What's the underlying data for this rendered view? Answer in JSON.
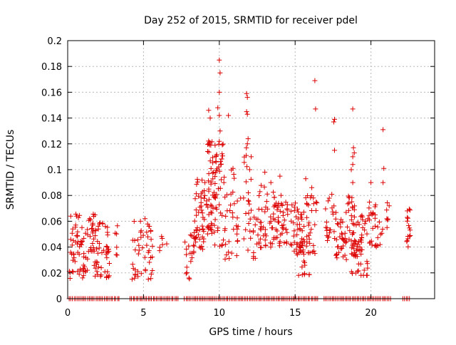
{
  "chart_data": {
    "type": "scatter",
    "title": "Day 252 of 2015, SRMTID for receiver pdel",
    "xlabel": "GPS time / hours",
    "ylabel": "SRMTID / TECUs",
    "xlim": [
      0,
      24.2
    ],
    "ylim": [
      0,
      0.2
    ],
    "grid": true,
    "marker": "+",
    "xticks": [
      0,
      5,
      10,
      15,
      20
    ],
    "yticks": [
      0,
      0.02,
      0.04,
      0.06,
      0.08,
      0.1,
      0.12,
      0.14,
      0.16,
      0.18,
      0.2
    ],
    "xtick_labels": [
      "0",
      "5",
      "10",
      "15",
      "20"
    ],
    "ytick_labels": [
      "0",
      "0.02",
      "0.04",
      "0.06",
      "0.08",
      "0.1",
      "0.12",
      "0.14",
      "0.16",
      "0.18",
      "0.2"
    ],
    "colors": {
      "series": "#dd0000",
      "grid": "#b8b8b8",
      "axes": "#000000"
    },
    "series": [
      {
        "name": "SRMTID",
        "clusters": [
          {
            "x": [
              0.1,
              2.4
            ],
            "y": [
              0.015,
              0.066
            ],
            "n": 110
          },
          {
            "x": 2.6,
            "y": [
              0.015,
              0.058
            ],
            "n": 20
          },
          {
            "x": [
              3.1,
              3.3
            ],
            "y": [
              0.03,
              0.057
            ],
            "n": 6
          },
          {
            "x": [
              4.2,
              5.6
            ],
            "y": [
              0.015,
              0.06
            ],
            "n": 45
          },
          {
            "x": [
              6.0,
              6.6
            ],
            "y": [
              0.035,
              0.055
            ],
            "n": 6
          },
          {
            "x": [
              7.7,
              8.2
            ],
            "y": [
              0.015,
              0.05
            ],
            "n": 14
          },
          {
            "x": [
              8.3,
              9.2
            ],
            "y": [
              0.035,
              0.095
            ],
            "n": 55
          },
          {
            "x": [
              9.2,
              9.6
            ],
            "y": [
              0.05,
              0.125
            ],
            "n": 40
          },
          {
            "x": [
              9.6,
              10.3
            ],
            "y": [
              0.04,
              0.12
            ],
            "n": 45
          },
          {
            "x": [
              10.3,
              11.0
            ],
            "y": [
              0.03,
              0.1
            ],
            "n": 25
          },
          {
            "x": [
              11.0,
              11.5
            ],
            "y": [
              0.03,
              0.08
            ],
            "n": 10
          },
          {
            "x": [
              11.6,
              12.1
            ],
            "y": [
              0.035,
              0.125
            ],
            "n": 22
          },
          {
            "x": [
              12.2,
              13.0
            ],
            "y": [
              0.03,
              0.09
            ],
            "n": 30
          },
          {
            "x": [
              13.0,
              14.2
            ],
            "y": [
              0.04,
              0.085
            ],
            "n": 55
          },
          {
            "x": [
              14.2,
              15.6
            ],
            "y": [
              0.035,
              0.075
            ],
            "n": 60
          },
          {
            "x": [
              15.1,
              16.0
            ],
            "y": [
              0.018,
              0.045
            ],
            "n": 20
          },
          {
            "x": [
              15.6,
              16.5
            ],
            "y": [
              0.035,
              0.08
            ],
            "n": 30
          },
          {
            "x": [
              17.0,
              17.6
            ],
            "y": [
              0.045,
              0.085
            ],
            "n": 20
          },
          {
            "x": [
              17.6,
              18.4
            ],
            "y": [
              0.03,
              0.075
            ],
            "n": 35
          },
          {
            "x": [
              18.4,
              19.0
            ],
            "y": [
              0.04,
              0.08
            ],
            "n": 25
          },
          {
            "x": [
              18.7,
              19.8
            ],
            "y": [
              0.018,
              0.065
            ],
            "n": 60
          },
          {
            "x": [
              19.7,
              20.8
            ],
            "y": [
              0.04,
              0.075
            ],
            "n": 30
          },
          {
            "x": [
              20.9,
              21.2
            ],
            "y": [
              0.055,
              0.075
            ],
            "n": 6
          },
          {
            "x": [
              22.3,
              22.6
            ],
            "y": [
              0.04,
              0.072
            ],
            "n": 15
          }
        ],
        "highlights": [
          [
            0.2,
            0.064
          ],
          [
            0.15,
            0.02
          ],
          [
            1.8,
            0.065
          ],
          [
            2.3,
            0.058
          ],
          [
            4.8,
            0.06
          ],
          [
            5.1,
            0.062
          ],
          [
            8.0,
            0.016
          ],
          [
            9.3,
            0.146
          ],
          [
            9.4,
            0.14
          ],
          [
            9.3,
            0.12
          ],
          [
            9.6,
            0.098
          ],
          [
            10.0,
            0.185
          ],
          [
            10.05,
            0.175
          ],
          [
            10.0,
            0.16
          ],
          [
            9.9,
            0.148
          ],
          [
            10.0,
            0.142
          ],
          [
            10.05,
            0.13
          ],
          [
            10.0,
            0.122
          ],
          [
            10.1,
            0.104
          ],
          [
            10.6,
            0.142
          ],
          [
            10.3,
            0.09
          ],
          [
            11.8,
            0.159
          ],
          [
            11.85,
            0.156
          ],
          [
            11.8,
            0.145
          ],
          [
            11.85,
            0.143
          ],
          [
            11.9,
            0.124
          ],
          [
            11.85,
            0.12
          ],
          [
            12.0,
            0.1
          ],
          [
            12.1,
            0.11
          ],
          [
            13.0,
            0.098
          ],
          [
            13.4,
            0.09
          ],
          [
            14.0,
            0.095
          ],
          [
            15.7,
            0.093
          ],
          [
            16.1,
            0.086
          ],
          [
            16.3,
            0.169
          ],
          [
            16.35,
            0.147
          ],
          [
            17.6,
            0.139
          ],
          [
            17.55,
            0.137
          ],
          [
            17.6,
            0.115
          ],
          [
            18.8,
            0.147
          ],
          [
            18.85,
            0.117
          ],
          [
            18.8,
            0.11
          ],
          [
            18.9,
            0.113
          ],
          [
            18.8,
            0.104
          ],
          [
            18.7,
            0.1
          ],
          [
            18.8,
            0.09
          ],
          [
            20.0,
            0.09
          ],
          [
            20.8,
            0.131
          ],
          [
            20.85,
            0.101
          ],
          [
            20.8,
            0.09
          ],
          [
            21.2,
            0.072
          ],
          [
            22.4,
            0.068
          ],
          [
            10.9,
            0.101
          ],
          [
            9.05,
            0.09
          ],
          [
            16.2,
            0.078
          ]
        ]
      }
    ],
    "zero_band": {
      "y": 0,
      "x_ranges": [
        [
          0.1,
          3.5
        ],
        [
          4.1,
          7.3
        ],
        [
          7.7,
          16.6
        ],
        [
          16.9,
          21.4
        ],
        [
          22.1,
          22.6
        ]
      ]
    }
  }
}
